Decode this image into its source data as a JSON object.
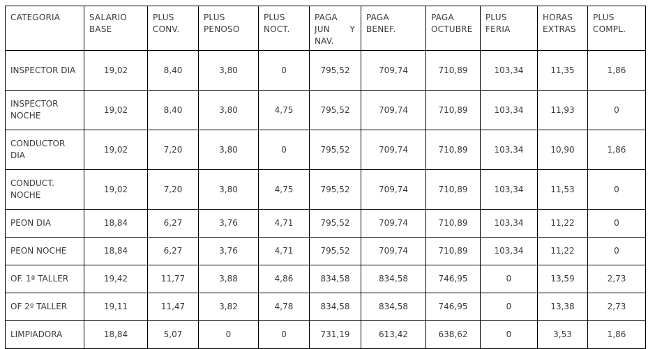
{
  "page": {
    "background_color": "#ffffff",
    "text_color": "#3a3a3a",
    "border_color": "#000000"
  },
  "table": {
    "columns": [
      {
        "id": "categoria",
        "label": "CATEGORIA"
      },
      {
        "id": "salario-base",
        "label": "SALARIO BASE"
      },
      {
        "id": "plus-conv",
        "label": "PLUS CONV."
      },
      {
        "id": "plus-penoso",
        "label": "PLUS PENOSO"
      },
      {
        "id": "plus-noct",
        "label": "PLUS NOCT."
      },
      {
        "id": "paga-jun-y-nav",
        "label": "PAGA JUN Y NAV."
      },
      {
        "id": "paga-benef",
        "label": "PAGA BENEF."
      },
      {
        "id": "paga-octubre",
        "label": "PAGA OCTUBRE"
      },
      {
        "id": "plus-feria",
        "label": "PLUS FERIA"
      },
      {
        "id": "horas-extras",
        "label": "HORAS EXTRAS"
      },
      {
        "id": "plus-compl",
        "label": "PLUS COMPL."
      }
    ],
    "rows": [
      {
        "category": "INSPECTOR DIA",
        "values": [
          "19,02",
          "8,40",
          "3,80",
          "0",
          "795,52",
          "709,74",
          "710,89",
          "103,34",
          "11,35",
          "1,86"
        ]
      },
      {
        "category": "INSPECTOR NOCHE",
        "values": [
          "19,02",
          "8,40",
          "3,80",
          "4,75",
          "795,52",
          "709,74",
          "710,89",
          "103,34",
          "11,93",
          "0"
        ]
      },
      {
        "category": "CONDUCTOR DIA",
        "values": [
          "19,02",
          "7,20",
          "3,80",
          "0",
          "795,52",
          "709,74",
          "710,89",
          "103,34",
          "10,90",
          "1,86"
        ]
      },
      {
        "category": "CONDUCT. NOCHE",
        "values": [
          "19,02",
          "7,20",
          "3,80",
          "4,75",
          "795,52",
          "709,74",
          "710,89",
          "103,34",
          "11,53",
          "0"
        ]
      },
      {
        "category": "PEON DIA",
        "values": [
          "18,84",
          "6,27",
          "3,76",
          "4,71",
          "795,52",
          "709,74",
          "710,89",
          "103,34",
          "11,22",
          "0"
        ]
      },
      {
        "category": "PEON NOCHE",
        "values": [
          "18,84",
          "6,27",
          "3,76",
          "4,71",
          "795,52",
          "709,74",
          "710,89",
          "103,34",
          "11,22",
          "0"
        ]
      },
      {
        "category": "OF. 1ª TALLER",
        "values": [
          "19,42",
          "11,77",
          "3,88",
          "4,86",
          "834,58",
          "834,58",
          "746,95",
          "0",
          "13,59",
          "2,73"
        ]
      },
      {
        "category": "OF 2º TALLER",
        "values": [
          "19,11",
          "11,47",
          "3,82",
          "4,78",
          "834,58",
          "834,58",
          "746,95",
          "0",
          "13,38",
          "2,73"
        ]
      },
      {
        "category": "LIMPIADORA",
        "values": [
          "18,84",
          "5,07",
          "0",
          "0",
          "731,19",
          "613,42",
          "638,62",
          "0",
          "3,53",
          "1,86"
        ]
      }
    ]
  }
}
